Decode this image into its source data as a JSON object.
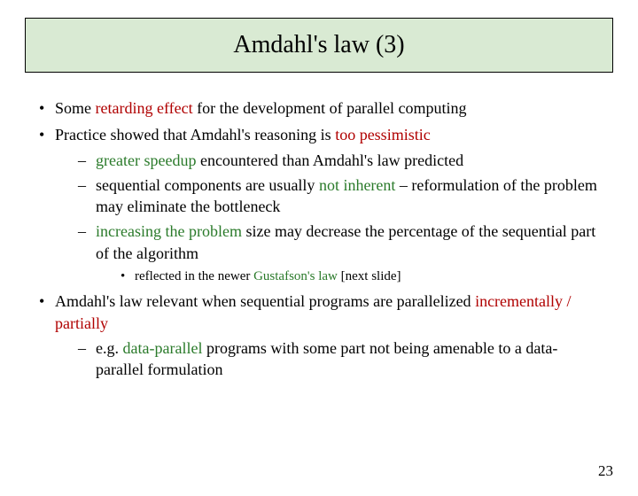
{
  "title": "Amdahl's law (3)",
  "colors": {
    "title_bg": "#d9ead3",
    "title_border": "#000000",
    "body_bg": "#ffffff",
    "text": "#000000",
    "highlight_red": "#b00000",
    "highlight_green": "#2a7a2a"
  },
  "typography": {
    "title_fontsize": 28,
    "body_fontsize": 18,
    "sub_fontsize": 15,
    "font_family": "Times New Roman"
  },
  "bullets": [
    {
      "prefix": "Some ",
      "hl1": "retarding effect",
      "hl1_color": "red",
      "suffix": " for the development of parallel computing"
    },
    {
      "prefix": "Practice showed that Amdahl's reasoning is ",
      "hl1": "too pessimistic",
      "hl1_color": "red",
      "suffix": "",
      "subs": [
        {
          "prefix": "",
          "hl1": "greater speedup",
          "hl1_color": "green",
          "suffix": " encountered than Amdahl's law predicted"
        },
        {
          "prefix": "sequential components are usually ",
          "hl1": "not inherent",
          "hl1_color": "green",
          "suffix": " – reformulation of the problem may eliminate the bottleneck"
        },
        {
          "prefix": "",
          "hl1": "increasing the problem",
          "hl1_color": "green",
          "suffix": " size may decrease the percentage of the sequential part of the algorithm",
          "subsubs": [
            {
              "prefix": "reflected in the newer ",
              "hl1": "Gustafson's law",
              "hl1_color": "green",
              "suffix": " [next slide]"
            }
          ]
        }
      ]
    },
    {
      "prefix": "Amdahl's law relevant when sequential programs are parallelized ",
      "hl1": "incrementally / partially",
      "hl1_color": "red",
      "suffix": "",
      "subs": [
        {
          "prefix": "e.g. ",
          "hl1": "data-parallel",
          "hl1_color": "green",
          "suffix": " programs with some part not being amenable to a data-parallel formulation"
        }
      ]
    }
  ],
  "page_number": "23"
}
